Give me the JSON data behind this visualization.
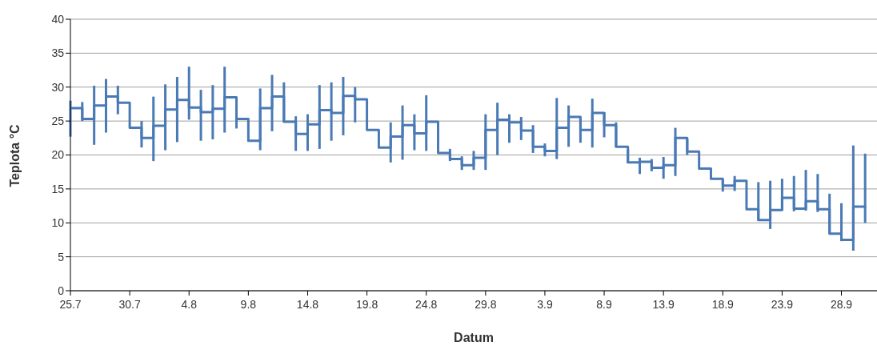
{
  "chart_data": {
    "type": "step",
    "xlabel": "Datum",
    "ylabel": "Teplota °C",
    "color": "#4a7ab5",
    "grid": "y",
    "legend": false,
    "marker": "none",
    "xlim": [
      "--07-25",
      "--10-01"
    ],
    "xticks": [
      {
        "value": "--07-25",
        "label": "25.7"
      },
      {
        "value": "--07-30",
        "label": "30.7"
      },
      {
        "value": "--08-04",
        "label": "4.8"
      },
      {
        "value": "--08-09",
        "label": "9.8"
      },
      {
        "value": "--08-14",
        "label": "14.8"
      },
      {
        "value": "--08-19",
        "label": "19.8"
      },
      {
        "value": "--08-24",
        "label": "24.8"
      },
      {
        "value": "--08-29",
        "label": "29.8"
      },
      {
        "value": "--09-03",
        "label": "3.9"
      },
      {
        "value": "--09-08",
        "label": "8.9"
      },
      {
        "value": "--09-13",
        "label": "13.9"
      },
      {
        "value": "--09-18",
        "label": "18.9"
      },
      {
        "value": "--09-23",
        "label": "23.9"
      },
      {
        "value": "--09-28",
        "label": "28.9"
      }
    ],
    "ylim": [
      0,
      40
    ],
    "yticks": [
      0,
      5,
      10,
      15,
      20,
      25,
      30,
      35,
      40
    ],
    "x": [
      "--07-25",
      "--07-26",
      "--07-27",
      "--07-28",
      "--07-29",
      "--07-30",
      "--07-31",
      "--08-01",
      "--08-02",
      "--08-03",
      "--08-04",
      "--08-05",
      "--08-06",
      "--08-07",
      "--08-08",
      "--08-09",
      "--08-10",
      "--08-11",
      "--08-12",
      "--08-13",
      "--08-14",
      "--08-15",
      "--08-16",
      "--08-17",
      "--08-18",
      "--08-19",
      "--08-20",
      "--08-21",
      "--08-22",
      "--08-23",
      "--08-24",
      "--08-25",
      "--08-26",
      "--08-27",
      "--08-28",
      "--08-29",
      "--08-30",
      "--08-31",
      "--09-01",
      "--09-02",
      "--09-03",
      "--09-04",
      "--09-05",
      "--09-06",
      "--09-07",
      "--09-08",
      "--09-09",
      "--09-10",
      "--09-11",
      "--09-12",
      "--09-13",
      "--09-14",
      "--09-15",
      "--09-16",
      "--09-17",
      "--09-18",
      "--09-19",
      "--09-20",
      "--09-21",
      "--09-22",
      "--09-23",
      "--09-24",
      "--09-25",
      "--09-26",
      "--09-27",
      "--09-28",
      "--09-29",
      "--09-30"
    ],
    "values": [
      26.9,
      25.3,
      27.3,
      28.6,
      27.7,
      24.0,
      22.5,
      24.3,
      26.7,
      28.1,
      27.0,
      26.3,
      26.8,
      28.5,
      25.3,
      22.1,
      26.9,
      28.6,
      24.9,
      23.1,
      24.5,
      26.6,
      26.2,
      28.7,
      28.2,
      23.7,
      21.1,
      22.7,
      24.4,
      23.2,
      24.9,
      20.3,
      19.4,
      18.5,
      19.6,
      23.7,
      25.2,
      24.8,
      23.6,
      21.2,
      20.6,
      24.0,
      25.6,
      23.7,
      26.2,
      24.4,
      21.2,
      18.9,
      19.0,
      18.1,
      18.5,
      22.5,
      20.5,
      18.0,
      16.5,
      15.5,
      16.2,
      12.0,
      10.4,
      11.9,
      13.7,
      12.1,
      13.2,
      12.0,
      8.4,
      7.5,
      12.4,
      12.3
    ],
    "errors": [
      [
        22.7,
        28.0
      ],
      [
        25.0,
        27.8
      ],
      [
        21.5,
        30.2
      ],
      [
        23.3,
        31.2
      ],
      [
        26.0,
        30.2
      ],
      null,
      [
        21.1,
        25.0
      ],
      [
        19.1,
        28.6
      ],
      [
        20.7,
        30.4
      ],
      [
        21.9,
        31.5
      ],
      [
        25.2,
        33.0
      ],
      [
        22.1,
        29.6
      ],
      [
        22.3,
        30.3
      ],
      [
        23.3,
        33.0
      ],
      [
        23.9,
        27.8
      ],
      null,
      [
        20.7,
        29.8
      ],
      [
        23.5,
        31.8
      ],
      [
        24.8,
        30.7
      ],
      [
        20.6,
        25.7
      ],
      [
        20.6,
        26.0
      ],
      [
        20.9,
        30.3
      ],
      [
        22.1,
        30.7
      ],
      [
        22.9,
        31.5
      ],
      [
        24.8,
        30.0
      ],
      null,
      null,
      [
        18.9,
        24.8
      ],
      [
        19.3,
        27.3
      ],
      [
        20.7,
        26.0
      ],
      [
        20.6,
        28.8
      ],
      null,
      [
        19.1,
        20.9
      ],
      [
        17.8,
        19.8
      ],
      [
        17.8,
        20.6
      ],
      [
        17.8,
        26.0
      ],
      [
        20.0,
        27.7
      ],
      [
        21.8,
        26.0
      ],
      [
        22.2,
        25.6
      ],
      [
        20.3,
        24.4
      ],
      [
        19.8,
        21.7
      ],
      [
        19.4,
        28.4
      ],
      [
        21.2,
        27.3
      ],
      [
        21.8,
        25.4
      ],
      [
        21.1,
        28.3
      ],
      [
        22.6,
        26.3
      ],
      [
        21.2,
        24.8
      ],
      [
        18.8,
        20.8
      ],
      [
        17.2,
        19.6
      ],
      [
        17.6,
        19.4
      ],
      [
        16.5,
        19.7
      ],
      [
        16.9,
        24.0
      ],
      [
        20.0,
        22.3
      ],
      null,
      null,
      [
        14.6,
        16.3
      ],
      [
        14.7,
        16.9
      ],
      null,
      [
        10.3,
        16.0
      ],
      [
        9.1,
        16.2
      ],
      [
        11.9,
        16.5
      ],
      [
        11.7,
        16.9
      ],
      [
        11.8,
        17.8
      ],
      [
        11.6,
        17.2
      ],
      [
        8.4,
        14.3
      ],
      [
        7.3,
        12.9
      ],
      [
        5.9,
        21.4
      ],
      [
        10.0,
        20.2
      ]
    ]
  }
}
